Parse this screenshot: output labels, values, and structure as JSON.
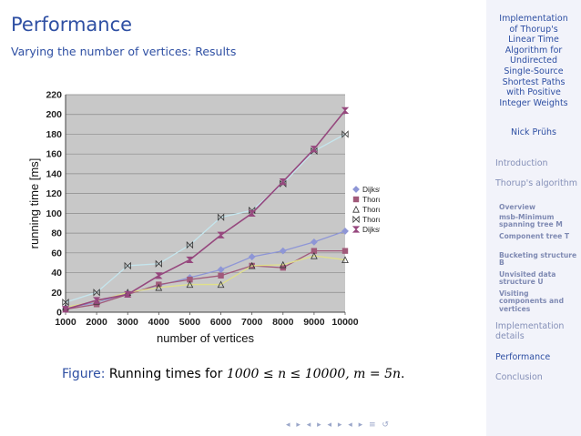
{
  "slide": {
    "title": "Performance",
    "subtitle": "Varying the number of vertices: Results",
    "caption_label": "Figure:",
    "caption_text": " Running times for ",
    "caption_math": "1000 ≤ n ≤ 10000, m = 5n",
    "caption_end": "."
  },
  "sidebar": {
    "title_lines": [
      "Implementation",
      "of Thorup's",
      "Linear Time",
      "Algorithm for",
      "Undirected",
      "Single-Source",
      "Shortest Paths",
      "with Positive",
      "Integer Weights"
    ],
    "author": "Nick Prühs",
    "sections": [
      {
        "label": "Introduction"
      },
      {
        "label": "Thorup's algorithm"
      },
      {
        "label": "Implementation details"
      },
      {
        "label": "Performance"
      },
      {
        "label": "Conclusion"
      }
    ],
    "subsections": [
      {
        "label": "Overview"
      },
      {
        "label": "msb-Minimum spanning tree M"
      },
      {
        "label": "Component tree T"
      },
      {
        "label": "Bucketing structure B"
      },
      {
        "label": "Unvisited data structure U"
      },
      {
        "label": "Visiting components and vertices"
      }
    ],
    "active_section": "Performance"
  },
  "navigation": {
    "symbols": "◂ ▸ ◂ ▸ ◂ ▸ ◂ ▸ ≡ ↺"
  },
  "colors": {
    "beamer_blue": "#2e4fa3",
    "sidebar_bg": "#f2f3fa",
    "plot_bg": "#c8c8c8"
  },
  "chart_data": {
    "type": "line",
    "xlabel": "number of vertices",
    "ylabel": "running time [ms]",
    "x": [
      1000,
      2000,
      3000,
      4000,
      5000,
      6000,
      7000,
      8000,
      9000,
      10000
    ],
    "xlim": [
      1000,
      10000
    ],
    "ylim": [
      0,
      220
    ],
    "yticks": [
      0,
      20,
      40,
      60,
      80,
      100,
      120,
      140,
      160,
      180,
      200,
      220
    ],
    "grid": "horizontal",
    "legend_position": "right",
    "series": [
      {
        "name": "Dijkstra (Fibonacci heap)",
        "color": "#8e96d6",
        "marker": "diamond",
        "values": [
          4,
          10,
          19,
          27,
          35,
          43,
          56,
          62,
          71,
          82
        ]
      },
      {
        "name": "Thorup (MST)",
        "color": "#a15a7a",
        "marker": "square",
        "values": [
          3,
          8,
          18,
          28,
          33,
          37,
          47,
          45,
          62,
          62
        ]
      },
      {
        "name": "Thorup (other DS)",
        "color": "#e0e08a",
        "marker": "triangle",
        "values": [
          5,
          11,
          20,
          25,
          28,
          28,
          47,
          48,
          57,
          53
        ]
      },
      {
        "name": "Thorup (visit)",
        "color": "#c5e6ee",
        "marker": "bowtie",
        "values": [
          10,
          20,
          47,
          49,
          68,
          96,
          103,
          130,
          163,
          180
        ]
      },
      {
        "name": "Dijkstra (array heap)",
        "color": "#96487e",
        "marker": "hourglass",
        "values": [
          3,
          12,
          18,
          37,
          53,
          78,
          100,
          132,
          165,
          204
        ]
      }
    ]
  }
}
